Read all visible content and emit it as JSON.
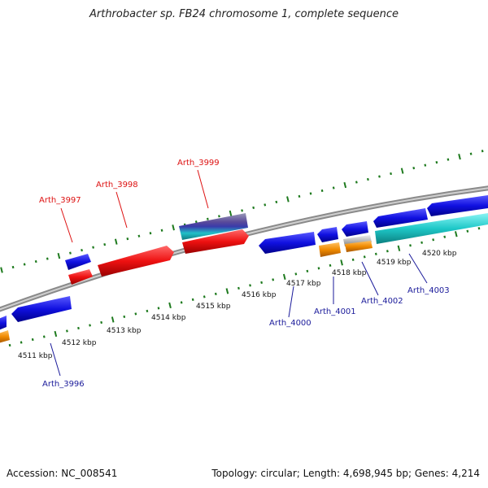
{
  "title": "Arthrobacter sp. FB24 chromosome 1, complete sequence",
  "accession": "Accession: NC_008541",
  "summary": "Topology: circular; Length: 4,698,945 bp; Genes: 4,214",
  "colors": {
    "backbone": "#8a8a8a",
    "tick_green": "#1e7a1e",
    "blue_gene": "#1010e0",
    "red_gene": "#ee1111",
    "orange_gene": "#f08a00",
    "cyan_gene": "#1ec8c8",
    "grey_gene": "#b8b8b8",
    "red_label": "#dd1111",
    "blue_label": "#1a1a9a"
  },
  "kbp_labels": [
    {
      "text": "4511 kbp"
    },
    {
      "text": "4512 kbp"
    },
    {
      "text": "4513 kbp"
    },
    {
      "text": "4514 kbp"
    },
    {
      "text": "4515 kbp"
    },
    {
      "text": "4516 kbp"
    },
    {
      "text": "4517 kbp"
    },
    {
      "text": "4518 kbp"
    },
    {
      "text": "4519 kbp"
    },
    {
      "text": "4520 kbp"
    }
  ],
  "gene_labels": [
    {
      "name": "Arth_3997",
      "strand": "forward"
    },
    {
      "name": "Arth_3998",
      "strand": "forward"
    },
    {
      "name": "Arth_3999",
      "strand": "forward"
    },
    {
      "name": "Arth_3996",
      "strand": "reverse"
    },
    {
      "name": "Arth_4000",
      "strand": "reverse"
    },
    {
      "name": "Arth_4001",
      "strand": "reverse"
    },
    {
      "name": "Arth_4002",
      "strand": "reverse"
    },
    {
      "name": "Arth_4003",
      "strand": "reverse"
    }
  ]
}
